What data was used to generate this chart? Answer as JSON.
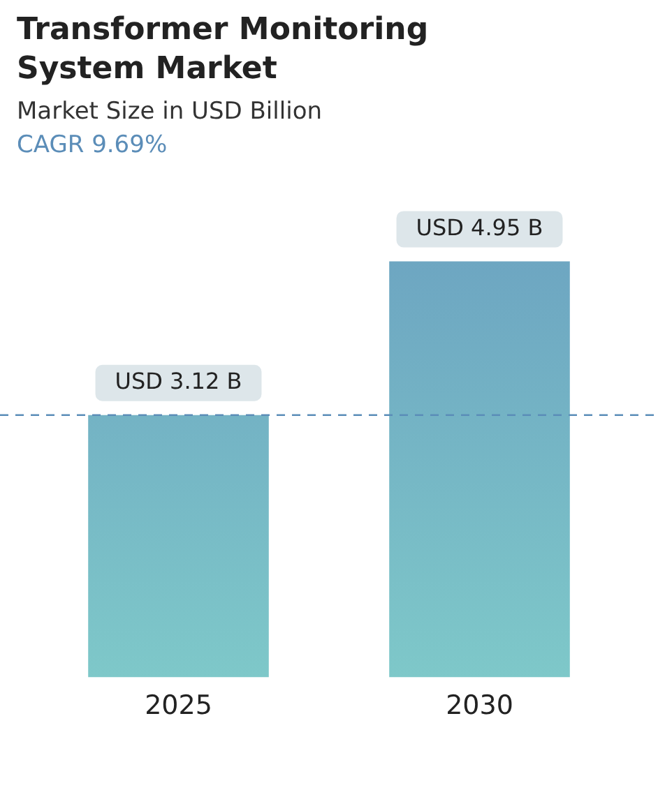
{
  "chart_data": {
    "type": "bar",
    "title": "Transformer Monitoring System Market",
    "subtitle": "Market Size in USD Billion",
    "annotations": [
      "CAGR 9.69%"
    ],
    "categories": [
      "2025",
      "2030"
    ],
    "values": [
      3.12,
      4.95
    ],
    "color": "#6a9fc0",
    "value_labels": [
      "USD 3.12 B",
      "USD 4.95 B"
    ],
    "ref_lines": [
      {
        "axis": "y",
        "value": 3.12,
        "color": "#5b8db8",
        "line_style": "dashed"
      }
    ],
    "grid": false,
    "legend": false
  }
}
